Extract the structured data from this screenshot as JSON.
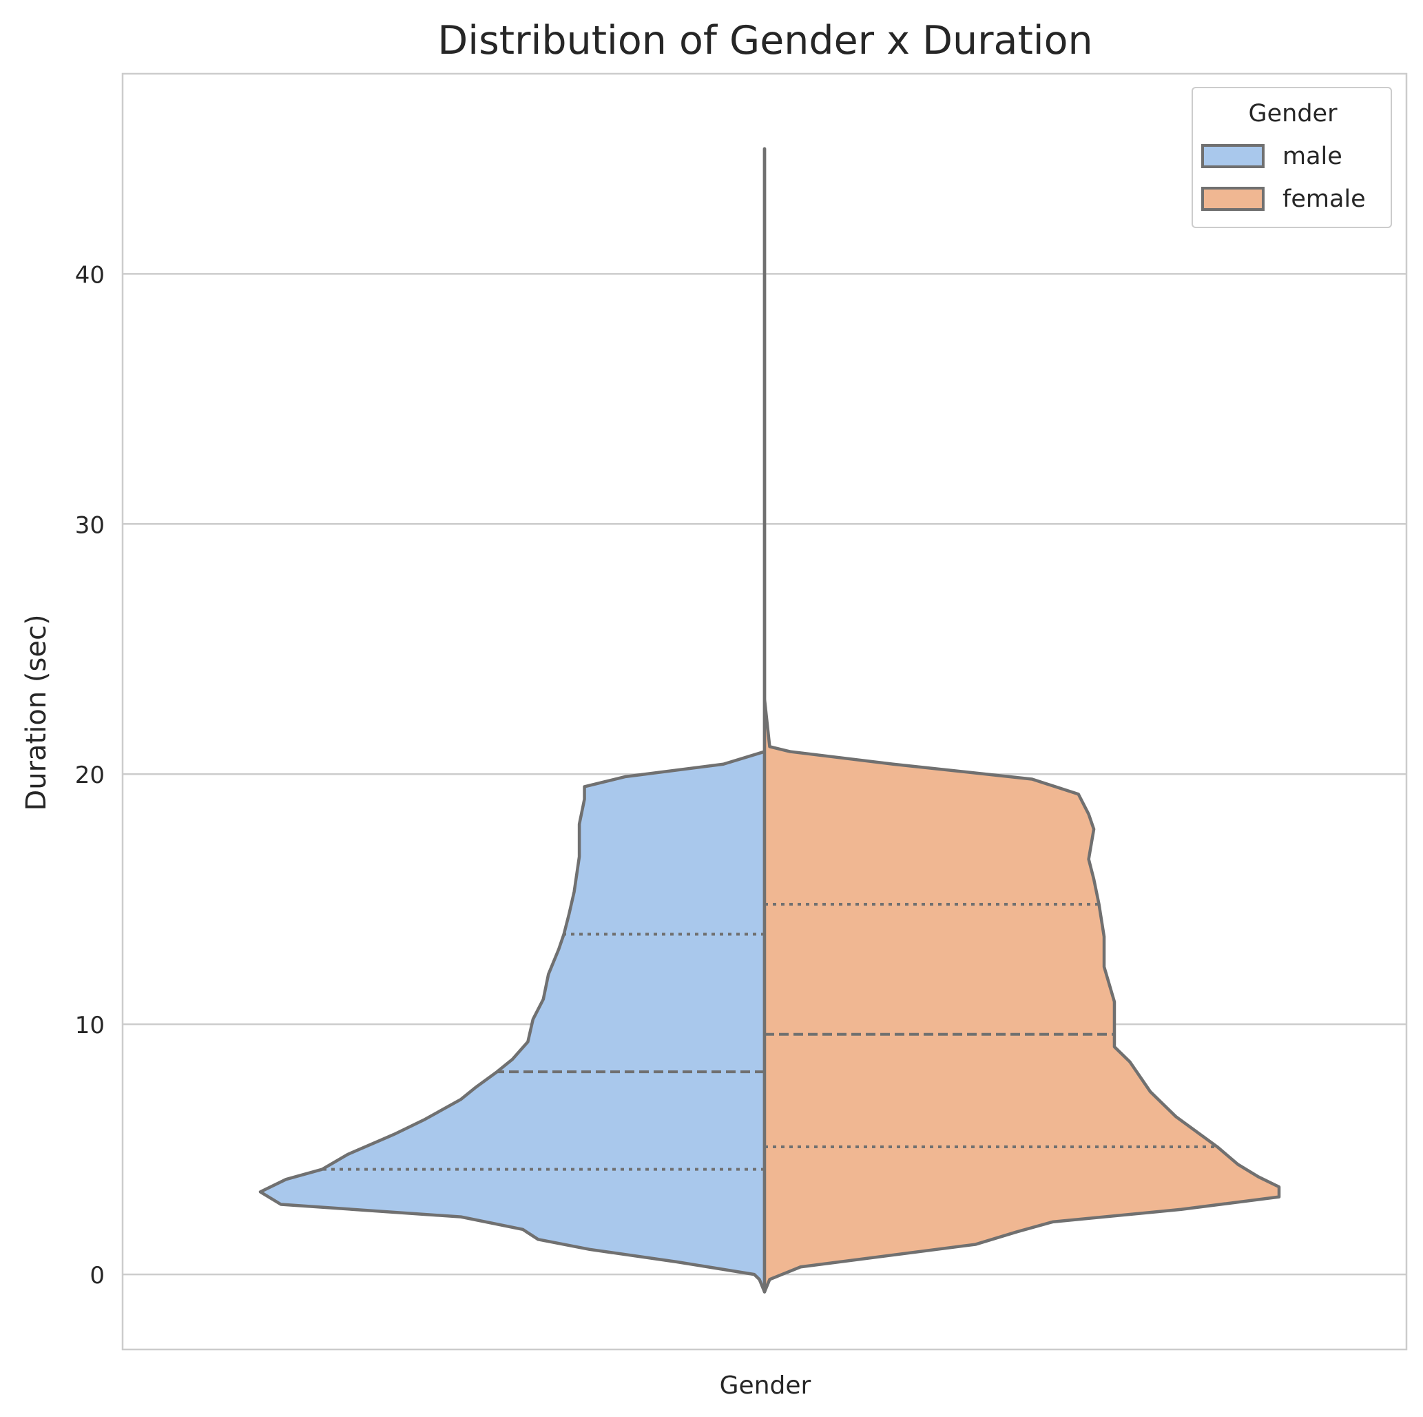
{
  "chart_data": {
    "type": "violin",
    "title": "Distribution of Gender x Duration",
    "xlabel": "Gender",
    "ylabel": "Duration (sec)",
    "ylim": [
      -3,
      48
    ],
    "yticks": [
      0,
      10,
      20,
      30,
      40
    ],
    "grid": true,
    "split": true,
    "legend": {
      "title": "Gender",
      "position": "top-right",
      "entries": [
        {
          "label": "male",
          "color": "#a9c8ec"
        },
        {
          "label": "female",
          "color": "#f0b792"
        }
      ]
    },
    "series": [
      {
        "name": "male",
        "side": "left",
        "color": "#a9c8ec",
        "quartiles": {
          "q1": 4.2,
          "median": 8.1,
          "q3": 13.6
        },
        "density": [
          [
            -0.7,
            0.0
          ],
          [
            -0.2,
            0.01
          ],
          [
            0.0,
            0.02
          ],
          [
            0.5,
            0.17
          ],
          [
            1.0,
            0.34
          ],
          [
            1.4,
            0.44
          ],
          [
            1.8,
            0.47
          ],
          [
            2.3,
            0.59
          ],
          [
            2.8,
            0.94
          ],
          [
            3.3,
            0.98
          ],
          [
            3.8,
            0.93
          ],
          [
            4.2,
            0.86
          ],
          [
            4.8,
            0.81
          ],
          [
            5.6,
            0.72
          ],
          [
            6.2,
            0.66
          ],
          [
            7.0,
            0.59
          ],
          [
            7.5,
            0.56
          ],
          [
            8.1,
            0.52
          ],
          [
            8.6,
            0.49
          ],
          [
            9.3,
            0.46
          ],
          [
            10.2,
            0.45
          ],
          [
            11.0,
            0.43
          ],
          [
            12.0,
            0.42
          ],
          [
            13.0,
            0.4
          ],
          [
            13.6,
            0.39
          ],
          [
            14.4,
            0.38
          ],
          [
            15.3,
            0.37
          ],
          [
            16.7,
            0.36
          ],
          [
            18.0,
            0.36
          ],
          [
            19.0,
            0.35
          ],
          [
            19.5,
            0.35
          ],
          [
            19.9,
            0.27
          ],
          [
            20.4,
            0.08
          ],
          [
            20.9,
            0.0
          ],
          [
            21.3,
            0.0
          ],
          [
            23.0,
            0.0
          ],
          [
            30.0,
            0.0
          ],
          [
            45.0,
            0.0
          ]
        ]
      },
      {
        "name": "female",
        "side": "right",
        "color": "#f0b792",
        "quartiles": {
          "q1": 5.1,
          "median": 9.6,
          "q3": 14.8
        },
        "density": [
          [
            -0.7,
            0.0
          ],
          [
            -0.2,
            0.01
          ],
          [
            0.3,
            0.07
          ],
          [
            1.2,
            0.41
          ],
          [
            1.7,
            0.49
          ],
          [
            2.1,
            0.56
          ],
          [
            2.6,
            0.81
          ],
          [
            3.1,
            1.0
          ],
          [
            3.5,
            1.0
          ],
          [
            3.9,
            0.96
          ],
          [
            4.4,
            0.92
          ],
          [
            5.1,
            0.88
          ],
          [
            6.3,
            0.8
          ],
          [
            7.3,
            0.75
          ],
          [
            8.5,
            0.71
          ],
          [
            9.1,
            0.68
          ],
          [
            9.6,
            0.68
          ],
          [
            10.2,
            0.68
          ],
          [
            10.9,
            0.68
          ],
          [
            12.3,
            0.66
          ],
          [
            13.5,
            0.66
          ],
          [
            14.8,
            0.65
          ],
          [
            15.8,
            0.64
          ],
          [
            16.6,
            0.63
          ],
          [
            17.8,
            0.64
          ],
          [
            18.4,
            0.63
          ],
          [
            19.2,
            0.61
          ],
          [
            19.8,
            0.52
          ],
          [
            20.4,
            0.25
          ],
          [
            20.9,
            0.05
          ],
          [
            21.1,
            0.01
          ],
          [
            23.0,
            0.0
          ],
          [
            45.0,
            0.0
          ]
        ]
      }
    ]
  }
}
